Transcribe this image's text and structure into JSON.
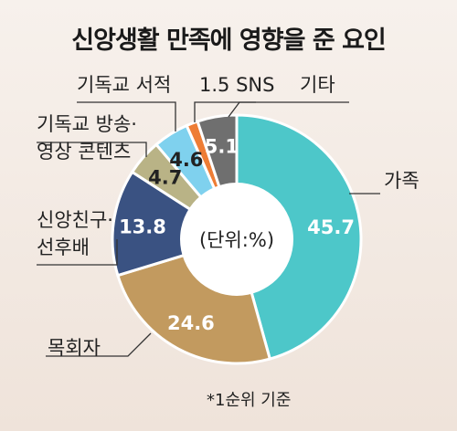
{
  "title": "신앙생활 만족에 영향을 준 요인",
  "footnote": "*1순위 기준",
  "chart_data": {
    "type": "pie",
    "donut": true,
    "title": "신앙생활 만족에 영향을 준 요인",
    "unit_label": "(단위:%)",
    "slices": [
      {
        "label": "가족",
        "value": 45.7,
        "value_text": "45.7",
        "color": "#4dc7c9"
      },
      {
        "label": "목회자",
        "value": 24.6,
        "value_text": "24.6",
        "color": "#c29a5f"
      },
      {
        "label": "신앙친구·\n선후배",
        "value": 13.8,
        "value_text": "13.8",
        "color": "#3a5282"
      },
      {
        "label": "기독교 방송·\n영상 콘텐츠",
        "value": 4.7,
        "value_text": "4.7",
        "color": "#b9b386"
      },
      {
        "label": "기독교 서적",
        "value": 4.6,
        "value_text": "4.6",
        "color": "#7fd1ee"
      },
      {
        "label": "SNS",
        "value": 1.5,
        "value_text": "1.5",
        "color": "#ee7d35"
      },
      {
        "label": "기타",
        "value": 5.1,
        "value_text": "5.1",
        "color": "#6f6f6f"
      }
    ]
  }
}
